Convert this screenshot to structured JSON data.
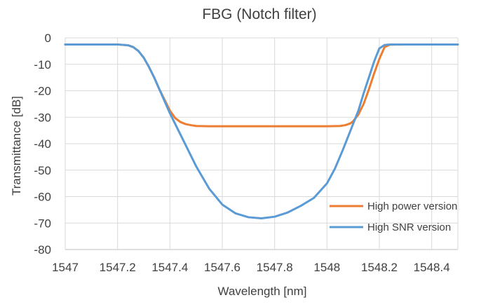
{
  "chart_data": {
    "type": "line",
    "title": "FBG (Notch filter)",
    "xlabel": "Wavelength [nm]",
    "ylabel": "Transmittance [dB]",
    "xlim": [
      1547,
      1548.5
    ],
    "ylim": [
      -80,
      0
    ],
    "x_ticks": [
      1547,
      1547.2,
      1547.4,
      1547.6,
      1547.8,
      1548,
      1548.2,
      1548.4
    ],
    "x_tick_labels": [
      "1547",
      "1547.2",
      "1547.4",
      "1547.6",
      "1547.8",
      "1548",
      "1548.2",
      "1548.4"
    ],
    "y_ticks": [
      0,
      -10,
      -20,
      -30,
      -40,
      -50,
      -60,
      -70,
      -80
    ],
    "y_tick_labels": [
      "0",
      "-10",
      "-20",
      "-30",
      "-40",
      "-50",
      "-60",
      "-70",
      "-80"
    ],
    "grid": true,
    "legend_position": "bottom-right",
    "series": [
      {
        "name": "High power version",
        "color": "#ed7d31",
        "x": [
          1547.0,
          1547.1,
          1547.2,
          1547.24,
          1547.26,
          1547.28,
          1547.3,
          1547.32,
          1547.34,
          1547.36,
          1547.38,
          1547.4,
          1547.42,
          1547.44,
          1547.46,
          1547.48,
          1547.5,
          1547.55,
          1547.6,
          1547.7,
          1547.8,
          1547.9,
          1548.0,
          1548.05,
          1548.07,
          1548.09,
          1548.1,
          1548.12,
          1548.14,
          1548.16,
          1548.18,
          1548.2,
          1548.22,
          1548.24,
          1548.3,
          1548.4,
          1548.5
        ],
        "y": [
          -2.5,
          -2.5,
          -2.5,
          -2.8,
          -3.5,
          -5,
          -7.5,
          -11,
          -15,
          -19.5,
          -23.5,
          -27.5,
          -30.3,
          -31.8,
          -32.6,
          -33,
          -33.3,
          -33.4,
          -33.4,
          -33.4,
          -33.4,
          -33.4,
          -33.4,
          -33.3,
          -33,
          -32.3,
          -31.5,
          -29,
          -25,
          -19.5,
          -13.5,
          -8,
          -3.5,
          -2.6,
          -2.5,
          -2.5,
          -2.5
        ]
      },
      {
        "name": "High SNR version",
        "color": "#5b9bd5",
        "x": [
          1547.0,
          1547.1,
          1547.2,
          1547.24,
          1547.26,
          1547.28,
          1547.3,
          1547.32,
          1547.34,
          1547.36,
          1547.38,
          1547.4,
          1547.42,
          1547.45,
          1547.5,
          1547.55,
          1547.6,
          1547.65,
          1547.7,
          1547.75,
          1547.8,
          1547.85,
          1547.9,
          1547.95,
          1548.0,
          1548.03,
          1548.06,
          1548.09,
          1548.12,
          1548.14,
          1548.16,
          1548.18,
          1548.2,
          1548.22,
          1548.24,
          1548.3,
          1548.4,
          1548.5
        ],
        "y": [
          -2.5,
          -2.5,
          -2.5,
          -2.8,
          -3.5,
          -5,
          -7.5,
          -11,
          -15,
          -19.5,
          -24,
          -28.5,
          -32.5,
          -38.5,
          -48.5,
          -57,
          -63,
          -66.3,
          -67.8,
          -68.2,
          -67.6,
          -66,
          -63.5,
          -60.5,
          -55,
          -49.5,
          -42.5,
          -35,
          -27.5,
          -21,
          -15,
          -9,
          -4,
          -2.7,
          -2.5,
          -2.5,
          -2.5,
          -2.5
        ]
      }
    ]
  }
}
